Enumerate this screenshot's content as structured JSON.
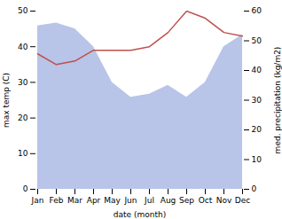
{
  "chart_data": {
    "type": "line",
    "xlabel": "date (month)",
    "ylabel": "max temp (C)",
    "y2label": "med. precipitation (kg/m2)",
    "categories": [
      "Jan",
      "Feb",
      "Mar",
      "Apr",
      "May",
      "Jun",
      "Jul",
      "Aug",
      "Sep",
      "Oct",
      "Nov",
      "Dec"
    ],
    "series": [
      {
        "type": "line",
        "color": "#c0504d",
        "values": [
          38,
          35,
          36,
          39,
          39,
          39,
          40,
          44,
          50,
          48,
          44,
          43
        ]
      },
      {
        "type": "area",
        "axis": "y2",
        "color": "#b8c4e8",
        "values": [
          55,
          56,
          54,
          48,
          36,
          31,
          32,
          35,
          31,
          36,
          48,
          52
        ]
      }
    ],
    "ylim": [
      0,
      50
    ],
    "yticks": [
      0,
      10,
      20,
      30,
      40,
      50
    ],
    "y2lim": [
      0,
      60
    ],
    "y2ticks": [
      0,
      10,
      20,
      30,
      40,
      50,
      60
    ]
  }
}
